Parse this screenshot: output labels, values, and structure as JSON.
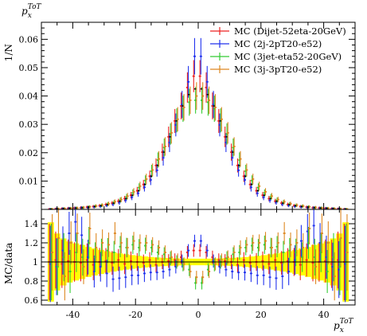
{
  "chart_data": {
    "type": "scatter",
    "title": "p_x^ToT",
    "title_parts": {
      "base": "p",
      "sub": "x",
      "sup": "ToT"
    },
    "xlabel_parts": {
      "base": "p",
      "sub": "x",
      "sup": "ToT"
    },
    "ylabel": "1/N",
    "ratio_ylabel": "MC/data",
    "xlim": [
      -50,
      50
    ],
    "ylim": [
      0,
      0.066
    ],
    "ratio_ylim": [
      0.55,
      1.55
    ],
    "x_ticks": [
      -40,
      -20,
      0,
      20,
      40
    ],
    "y_ticks": [
      0.01,
      0.02,
      0.03,
      0.04,
      0.05,
      0.06
    ],
    "y_tick_labels": [
      "0.01",
      "0.02",
      "0.03",
      "0.04",
      "0.05",
      "0.06"
    ],
    "ratio_ticks": [
      0.6,
      0.8,
      1,
      1.2,
      1.4
    ],
    "ratio_tick_labels": [
      "0.6",
      "0.8",
      "1",
      "1.2",
      "1.4"
    ],
    "legend_position": "top-right",
    "x": [
      -47,
      -45,
      -43,
      -41,
      -39,
      -37,
      -35,
      -33,
      -31,
      -29,
      -27,
      -25,
      -23,
      -21,
      -19,
      -17,
      -15,
      -13,
      -11,
      -9,
      -7,
      -5,
      -3,
      -1,
      1,
      3,
      5,
      7,
      9,
      11,
      13,
      15,
      17,
      19,
      21,
      23,
      25,
      27,
      29,
      31,
      33,
      35,
      37,
      39,
      41,
      43,
      45,
      47
    ],
    "data": {
      "name": "data",
      "color": "#000000",
      "values": [
        0.0001,
        0.0002,
        0.0003,
        0.0004,
        0.0005,
        0.0006,
        0.0008,
        0.001,
        0.0013,
        0.0017,
        0.0022,
        0.0029,
        0.0038,
        0.005,
        0.0066,
        0.0088,
        0.0117,
        0.0155,
        0.0202,
        0.0256,
        0.0312,
        0.0365,
        0.0405,
        0.0425,
        0.0425,
        0.0405,
        0.0365,
        0.0312,
        0.0256,
        0.0202,
        0.0155,
        0.0117,
        0.0088,
        0.0066,
        0.005,
        0.0038,
        0.0029,
        0.0022,
        0.0017,
        0.0013,
        0.001,
        0.0008,
        0.0006,
        0.0005,
        0.0004,
        0.0003,
        0.0002,
        0.0001
      ]
    },
    "series": [
      {
        "name": "MC (Dijet-52eta-20GeV)",
        "color": "#ee2222",
        "values": [
          0.0001,
          0.0002,
          0.0003,
          0.0004,
          0.0005,
          0.0006,
          0.0008,
          0.001,
          0.0013,
          0.0017,
          0.0022,
          0.0029,
          0.0038,
          0.005,
          0.0066,
          0.0088,
          0.0117,
          0.0155,
          0.0202,
          0.0256,
          0.0312,
          0.0365,
          0.043,
          0.047,
          0.047,
          0.043,
          0.0365,
          0.0312,
          0.0256,
          0.0202,
          0.0155,
          0.0117,
          0.0088,
          0.0066,
          0.005,
          0.0038,
          0.0029,
          0.0022,
          0.0017,
          0.0013,
          0.001,
          0.0008,
          0.0006,
          0.0005,
          0.0004,
          0.0003,
          0.0002,
          0.0001
        ],
        "ratio": [
          1,
          1.02,
          0.98,
          1.01,
          1,
          0.99,
          1.02,
          0.97,
          1,
          1.01,
          0.99,
          1.02,
          0.98,
          1.01,
          1,
          0.99,
          1.02,
          0.97,
          1,
          1.01,
          1.02,
          1.05,
          1.1,
          1.12,
          1.12,
          1.1,
          1.05,
          1.02,
          1.01,
          1,
          0.97,
          1.02,
          0.99,
          1,
          1.01,
          0.98,
          1.02,
          0.99,
          1.01,
          1,
          0.97,
          1.02,
          0.99,
          1,
          1.01,
          0.98,
          1.02,
          1
        ]
      },
      {
        "name": "MC (2j-2pT20-e52)",
        "color": "#2233ee",
        "values": [
          0.0001,
          0.0002,
          0.0003,
          0.0004,
          0.0005,
          0.0006,
          0.0007,
          0.0009,
          0.0011,
          0.0014,
          0.0018,
          0.0024,
          0.0032,
          0.0043,
          0.0057,
          0.0078,
          0.0104,
          0.0138,
          0.0182,
          0.0236,
          0.0298,
          0.037,
          0.045,
          0.054,
          0.054,
          0.045,
          0.037,
          0.0298,
          0.0236,
          0.0182,
          0.0138,
          0.0104,
          0.0078,
          0.0057,
          0.0043,
          0.0032,
          0.0024,
          0.0018,
          0.0014,
          0.0011,
          0.0009,
          0.0007,
          0.0006,
          0.0005,
          0.0004,
          0.0003,
          0.0002,
          0.0001
        ],
        "ratio": [
          0.98,
          0.95,
          1.12,
          1.3,
          1.42,
          1.28,
          1.05,
          0.9,
          0.95,
          0.88,
          0.82,
          0.83,
          0.84,
          0.86,
          0.86,
          0.88,
          0.89,
          0.89,
          0.9,
          0.92,
          0.95,
          1.01,
          1.12,
          1.22,
          1.22,
          1.12,
          1.01,
          0.95,
          0.92,
          0.9,
          0.89,
          0.89,
          0.88,
          0.86,
          0.86,
          0.84,
          0.83,
          0.85,
          0.9,
          1.02,
          1.22,
          1.32,
          1.38,
          1.2,
          1.05,
          0.95,
          0.92,
          0.98
        ]
      },
      {
        "name": "MC (3jet-eta52-20GeV)",
        "color": "#33cc33",
        "values": [
          0.0001,
          0.0002,
          0.0003,
          0.0004,
          0.0005,
          0.0006,
          0.0009,
          0.0011,
          0.0014,
          0.0019,
          0.0025,
          0.0033,
          0.0044,
          0.0058,
          0.0077,
          0.0102,
          0.0135,
          0.0174,
          0.0218,
          0.0266,
          0.0314,
          0.0355,
          0.0378,
          0.0385,
          0.0385,
          0.0378,
          0.0355,
          0.0314,
          0.0266,
          0.0218,
          0.0174,
          0.0135,
          0.0102,
          0.0077,
          0.0058,
          0.0044,
          0.0033,
          0.0025,
          0.0019,
          0.0014,
          0.0011,
          0.0009,
          0.0006,
          0.0005,
          0.0004,
          0.0003,
          0.0002,
          0.0001
        ],
        "ratio": [
          1,
          0.95,
          1.05,
          0.9,
          1.1,
          1.05,
          1.2,
          1.05,
          1.1,
          1.12,
          1.1,
          1.16,
          1.15,
          1.18,
          1.15,
          1.17,
          1.15,
          1.1,
          1.08,
          1.04,
          1,
          0.97,
          0.92,
          0.78,
          0.78,
          0.92,
          0.97,
          1,
          1.04,
          1.08,
          1.1,
          1.15,
          1.17,
          1.15,
          1.18,
          1.15,
          1.16,
          1.1,
          1.12,
          1.1,
          1.05,
          1.2,
          1.05,
          1.1,
          0.9,
          1.05,
          0.95,
          1
        ]
      },
      {
        "name": "MC (3j-3pT20-e52)",
        "color": "#dd8822",
        "values": [
          0.0001,
          0.0002,
          0.0003,
          0.0004,
          0.0005,
          0.0007,
          0.0009,
          0.0012,
          0.0015,
          0.002,
          0.0027,
          0.0035,
          0.0047,
          0.0062,
          0.0082,
          0.0107,
          0.0139,
          0.0178,
          0.0222,
          0.027,
          0.0318,
          0.036,
          0.0385,
          0.04,
          0.04,
          0.0385,
          0.036,
          0.0318,
          0.027,
          0.0222,
          0.0178,
          0.0139,
          0.0107,
          0.0082,
          0.0062,
          0.0047,
          0.0035,
          0.0027,
          0.002,
          0.0015,
          0.0012,
          0.0009,
          0.0007,
          0.0005,
          0.0004,
          0.0003,
          0.0002,
          0.0001
        ],
        "ratio": [
          1.1,
          1.25,
          0.85,
          1.2,
          1.3,
          0.95,
          1.35,
          1.15,
          1.2,
          1.18,
          1.3,
          1.2,
          1.15,
          1.22,
          1.2,
          1.2,
          1.18,
          1.15,
          1.1,
          1.05,
          1.02,
          0.98,
          0.9,
          0.84,
          0.84,
          0.9,
          0.98,
          1.02,
          1.05,
          1.1,
          1.15,
          1.18,
          1.2,
          1.2,
          1.22,
          1.15,
          1.2,
          1.3,
          1.18,
          1.2,
          1.15,
          1.35,
          0.95,
          1.3,
          1.2,
          0.85,
          1.25,
          1.1
        ]
      }
    ],
    "data_uncertainty_band_color": "#ffff00"
  }
}
